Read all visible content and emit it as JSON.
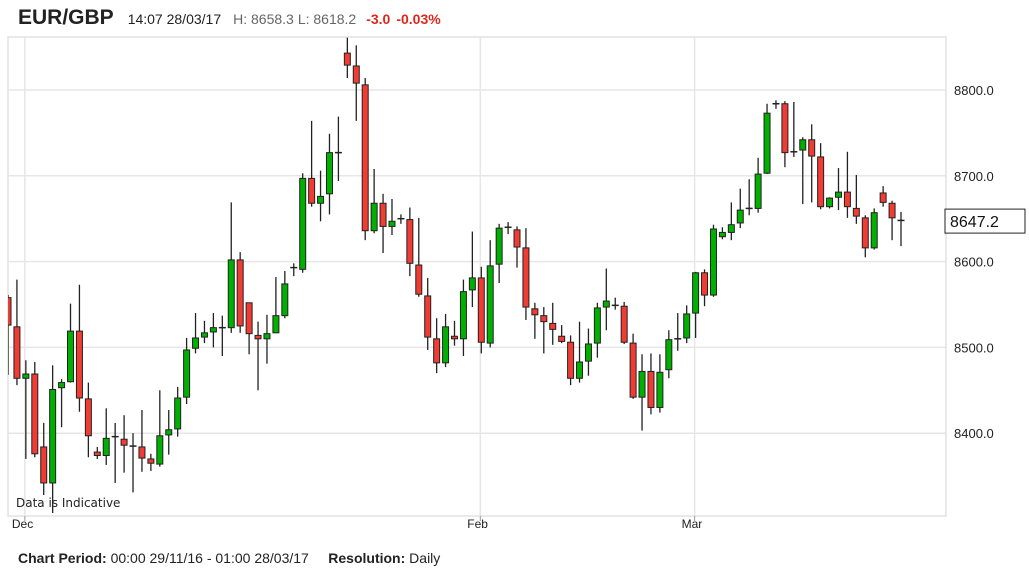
{
  "header": {
    "symbol": "EUR/GBP",
    "timestamp": "14:07 28/03/17",
    "high": "H: 8658.3",
    "low": "L: 8618.2",
    "change": "-3.0",
    "change_pct": "-0.03%"
  },
  "footer": {
    "period_label": "Chart Period:",
    "period_value": "00:00 29/11/16 - 01:00 28/03/17",
    "resolution_label": "Resolution:",
    "resolution_value": "Daily"
  },
  "colors": {
    "up": "#00b000",
    "down": "#f03c32",
    "grid": "#e6e6e6",
    "wick": "#222222"
  },
  "chart_data": {
    "type": "candlestick",
    "title": "EUR/GBP",
    "annotation": "Data is Indicative",
    "last_price": "8647.2",
    "y_axis_position": "right",
    "ylim": [
      8310,
      8860
    ],
    "y_ticks": [
      "8400.0",
      "8500.0",
      "8600.0",
      "8700.0",
      "8800.0"
    ],
    "x_ticks": [
      {
        "label": "Dec",
        "index": 2
      },
      {
        "label": "Feb",
        "index": 53
      },
      {
        "label": "Mar",
        "index": 77
      }
    ],
    "grid": true,
    "ohlc_fields": [
      "open",
      "high",
      "low",
      "close"
    ],
    "ohlc": [
      [
        8558,
        8561,
        8468,
        8526
      ],
      [
        8524,
        8579,
        8456,
        8464
      ],
      [
        8464,
        8485,
        8370,
        8469
      ],
      [
        8469,
        8483,
        8372,
        8376
      ],
      [
        8384,
        8412,
        8328,
        8342
      ],
      [
        8342,
        8479,
        8307,
        8451
      ],
      [
        8453,
        8463,
        8407,
        8459
      ],
      [
        8460,
        8551,
        8459,
        8519
      ],
      [
        8519,
        8573,
        8425,
        8441
      ],
      [
        8440,
        8459,
        8372,
        8397
      ],
      [
        8378,
        8384,
        8370,
        8374
      ],
      [
        8374,
        8429,
        8363,
        8394
      ],
      [
        8396,
        8412,
        8342,
        8396
      ],
      [
        8393,
        8421,
        8354,
        8386
      ],
      [
        8385,
        8400,
        8331,
        8385
      ],
      [
        8384,
        8427,
        8355,
        8371
      ],
      [
        8370,
        8376,
        8356,
        8365
      ],
      [
        8364,
        8450,
        8361,
        8397
      ],
      [
        8398,
        8427,
        8375,
        8404
      ],
      [
        8405,
        8454,
        8396,
        8441
      ],
      [
        8442,
        8511,
        8434,
        8497
      ],
      [
        8499,
        8540,
        8493,
        8511
      ],
      [
        8512,
        8531,
        8505,
        8517
      ],
      [
        8518,
        8540,
        8500,
        8523
      ],
      [
        8523,
        8537,
        8490,
        8523
      ],
      [
        8523,
        8669,
        8517,
        8602
      ],
      [
        8602,
        8611,
        8517,
        8525
      ],
      [
        8552,
        8552,
        8492,
        8516
      ],
      [
        8514,
        8530,
        8450,
        8510
      ],
      [
        8510,
        8538,
        8481,
        8516
      ],
      [
        8517,
        8582,
        8517,
        8537
      ],
      [
        8537,
        8589,
        8534,
        8574
      ],
      [
        8593,
        8598,
        8583,
        8593
      ],
      [
        8591,
        8703,
        8587,
        8697
      ],
      [
        8697,
        8764,
        8664,
        8668
      ],
      [
        8668,
        8706,
        8647,
        8676
      ],
      [
        8679,
        8749,
        8655,
        8727
      ],
      [
        8727,
        8769,
        8694,
        8727
      ],
      [
        8843,
        8861,
        8814,
        8829
      ],
      [
        8828,
        8852,
        8764,
        8808
      ],
      [
        8806,
        8814,
        8625,
        8636
      ],
      [
        8636,
        8708,
        8633,
        8668
      ],
      [
        8668,
        8679,
        8610,
        8641
      ],
      [
        8641,
        8673,
        8631,
        8647
      ],
      [
        8650,
        8655,
        8644,
        8650
      ],
      [
        8649,
        8663,
        8583,
        8598
      ],
      [
        8596,
        8651,
        8559,
        8562
      ],
      [
        8560,
        8581,
        8497,
        8512
      ],
      [
        8510,
        8534,
        8470,
        8482
      ],
      [
        8482,
        8539,
        8477,
        8524
      ],
      [
        8513,
        8531,
        8502,
        8510
      ],
      [
        8510,
        8579,
        8490,
        8565
      ],
      [
        8567,
        8635,
        8547,
        8581
      ],
      [
        8581,
        8594,
        8493,
        8506
      ],
      [
        8505,
        8625,
        8500,
        8595
      ],
      [
        8597,
        8644,
        8575,
        8639
      ],
      [
        8640,
        8646,
        8632,
        8640
      ],
      [
        8637,
        8641,
        8593,
        8617
      ],
      [
        8616,
        8639,
        8532,
        8547
      ],
      [
        8545,
        8552,
        8510,
        8538
      ],
      [
        8537,
        8547,
        8493,
        8530
      ],
      [
        8528,
        8552,
        8503,
        8521
      ],
      [
        8513,
        8526,
        8505,
        8507
      ],
      [
        8506,
        8514,
        8456,
        8464
      ],
      [
        8464,
        8530,
        8459,
        8483
      ],
      [
        8484,
        8522,
        8467,
        8504
      ],
      [
        8505,
        8552,
        8488,
        8546
      ],
      [
        8547,
        8592,
        8520,
        8554
      ],
      [
        8549,
        8558,
        8544,
        8549
      ],
      [
        8548,
        8553,
        8504,
        8506
      ],
      [
        8505,
        8516,
        8440,
        8442
      ],
      [
        8442,
        8492,
        8403,
        8472
      ],
      [
        8472,
        8493,
        8422,
        8430
      ],
      [
        8430,
        8492,
        8424,
        8471
      ],
      [
        8474,
        8520,
        8464,
        8509
      ],
      [
        8510,
        8540,
        8496,
        8510
      ],
      [
        8511,
        8549,
        8505,
        8539
      ],
      [
        8540,
        8588,
        8511,
        8587
      ],
      [
        8587,
        8591,
        8548,
        8561
      ],
      [
        8561,
        8643,
        8559,
        8638
      ],
      [
        8629,
        8640,
        8626,
        8634
      ],
      [
        8634,
        8669,
        8625,
        8643
      ],
      [
        8645,
        8685,
        8639,
        8660
      ],
      [
        8662,
        8696,
        8654,
        8662
      ],
      [
        8662,
        8721,
        8657,
        8702
      ],
      [
        8703,
        8784,
        8702,
        8773
      ],
      [
        8784,
        8788,
        8778,
        8784
      ],
      [
        8784,
        8787,
        8710,
        8727
      ],
      [
        8728,
        8786,
        8722,
        8728
      ],
      [
        8730,
        8745,
        8667,
        8742
      ],
      [
        8742,
        8760,
        8669,
        8723
      ],
      [
        8722,
        8738,
        8661,
        8664
      ],
      [
        8664,
        8675,
        8662,
        8674
      ],
      [
        8675,
        8709,
        8660,
        8681
      ],
      [
        8681,
        8728,
        8651,
        8664
      ],
      [
        8662,
        8701,
        8644,
        8653
      ],
      [
        8651,
        8654,
        8605,
        8616
      ],
      [
        8616,
        8662,
        8614,
        8657
      ],
      [
        8680,
        8688,
        8664,
        8669
      ],
      [
        8668,
        8671,
        8625,
        8651
      ],
      [
        8648,
        8658,
        8618,
        8647.2
      ]
    ]
  }
}
